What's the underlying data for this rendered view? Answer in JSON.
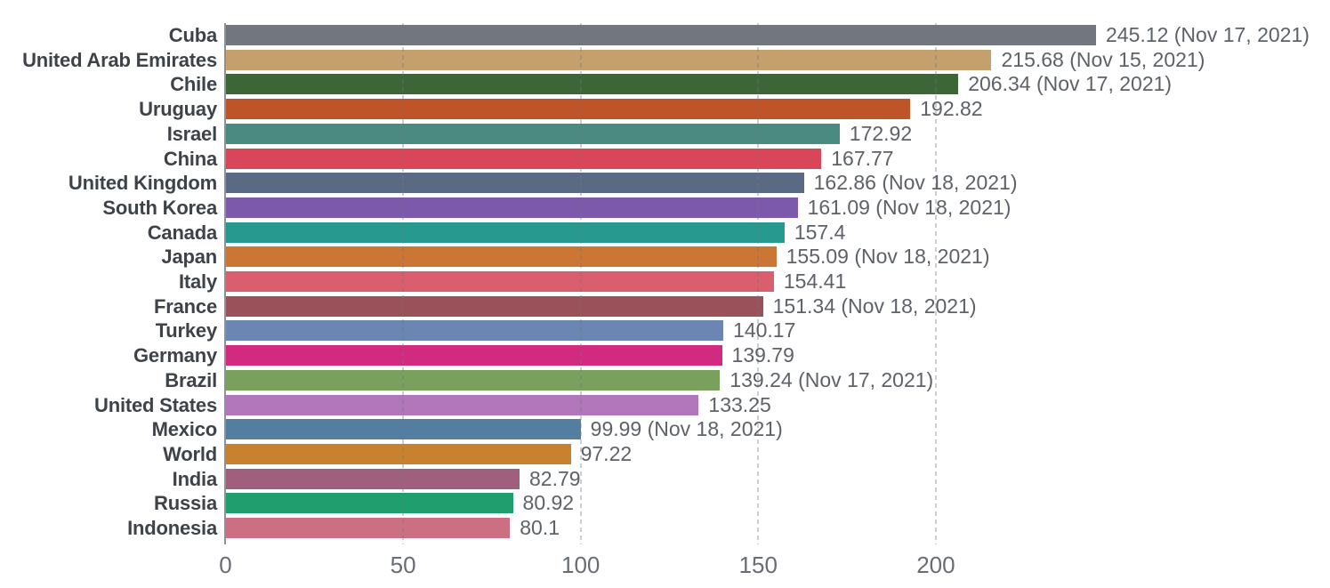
{
  "chart_data": {
    "type": "bar",
    "orientation": "horizontal",
    "title": "",
    "xlabel": "",
    "ylabel": "",
    "xlim": [
      0,
      250
    ],
    "x_ticks": [
      0,
      50,
      100,
      150,
      200
    ],
    "x_tick_labels": [
      "0",
      "50",
      "100",
      "150",
      "200"
    ],
    "grid": "vertical-dashed",
    "legend": "none",
    "series": [
      {
        "label": "Cuba",
        "value": 245.12,
        "display": "245.12 (Nov 17, 2021)",
        "date": "Nov 17, 2021",
        "color": "#72777f"
      },
      {
        "label": "United Arab Emirates",
        "value": 215.68,
        "display": "215.68 (Nov 15, 2021)",
        "date": "Nov 15, 2021",
        "color": "#c6a06c"
      },
      {
        "label": "Chile",
        "value": 206.34,
        "display": "206.34 (Nov 17, 2021)",
        "date": "Nov 17, 2021",
        "color": "#3d6636"
      },
      {
        "label": "Uruguay",
        "value": 192.82,
        "display": "192.82",
        "date": "",
        "color": "#bf5428"
      },
      {
        "label": "Israel",
        "value": 172.92,
        "display": "172.92",
        "date": "",
        "color": "#4b8a80"
      },
      {
        "label": "China",
        "value": 167.77,
        "display": "167.77",
        "date": "",
        "color": "#da4659"
      },
      {
        "label": "United Kingdom",
        "value": 162.86,
        "display": "162.86 (Nov 18, 2021)",
        "date": "Nov 18, 2021",
        "color": "#5b6a84"
      },
      {
        "label": "South Korea",
        "value": 161.09,
        "display": "161.09 (Nov 18, 2021)",
        "date": "Nov 18, 2021",
        "color": "#7d59ab"
      },
      {
        "label": "Canada",
        "value": 157.4,
        "display": "157.4",
        "date": "",
        "color": "#27998e"
      },
      {
        "label": "Japan",
        "value": 155.09,
        "display": "155.09 (Nov 18, 2021)",
        "date": "Nov 18, 2021",
        "color": "#cc7636"
      },
      {
        "label": "Italy",
        "value": 154.41,
        "display": "154.41",
        "date": "",
        "color": "#da5f6e"
      },
      {
        "label": "France",
        "value": 151.34,
        "display": "151.34 (Nov 18, 2021)",
        "date": "Nov 18, 2021",
        "color": "#9a515a"
      },
      {
        "label": "Turkey",
        "value": 140.17,
        "display": "140.17",
        "date": "",
        "color": "#6c86b4"
      },
      {
        "label": "Germany",
        "value": 139.79,
        "display": "139.79",
        "date": "",
        "color": "#d22a7f"
      },
      {
        "label": "Brazil",
        "value": 139.24,
        "display": "139.24 (Nov 17, 2021)",
        "date": "Nov 17, 2021",
        "color": "#7aa05e"
      },
      {
        "label": "United States",
        "value": 133.25,
        "display": "133.25",
        "date": "",
        "color": "#b277bb"
      },
      {
        "label": "Mexico",
        "value": 99.99,
        "display": "99.99 (Nov 18, 2021)",
        "date": "Nov 18, 2021",
        "color": "#537e9f"
      },
      {
        "label": "World",
        "value": 97.22,
        "display": "97.22",
        "date": "",
        "color": "#c8822f"
      },
      {
        "label": "India",
        "value": 82.79,
        "display": "82.79",
        "date": "",
        "color": "#a15f7e"
      },
      {
        "label": "Russia",
        "value": 80.92,
        "display": "80.92",
        "date": "",
        "color": "#1f9f6e"
      },
      {
        "label": "Indonesia",
        "value": 80.1,
        "display": "80.1",
        "date": "",
        "color": "#cb7082"
      }
    ]
  },
  "colors": {
    "background": "#ffffff",
    "axis_line": "#8e9196",
    "gridline": "#ccd0d3",
    "country_label": "#3e434a",
    "value_label": "#5d6269",
    "tick_label": "#686d74"
  }
}
